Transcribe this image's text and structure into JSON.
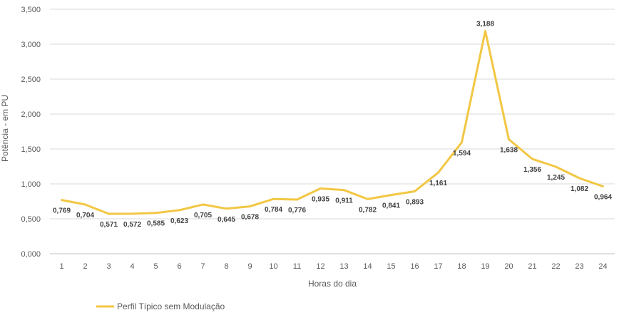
{
  "chart_data": {
    "type": "line",
    "title": "",
    "xlabel": "Horas do dia",
    "ylabel": "Potência - em PU",
    "ylim": [
      0,
      3.5
    ],
    "grid": true,
    "legend_position": "bottom-left",
    "series_color": "#F2C744",
    "grid_color": "#D9D9D9",
    "x": [
      1,
      2,
      3,
      4,
      5,
      6,
      7,
      8,
      9,
      10,
      11,
      12,
      13,
      14,
      15,
      16,
      17,
      18,
      19,
      20,
      21,
      22,
      23,
      24
    ],
    "x_tick_labels": [
      "1",
      "2",
      "3",
      "4",
      "5",
      "6",
      "7",
      "8",
      "9",
      "10",
      "11",
      "12",
      "13",
      "14",
      "15",
      "16",
      "17",
      "18",
      "19",
      "20",
      "21",
      "22",
      "23",
      "24"
    ],
    "y_ticks": [
      0,
      0.5,
      1,
      1.5,
      2,
      2.5,
      3,
      3.5
    ],
    "y_tick_labels": [
      "0,000",
      "0,500",
      "1,000",
      "1,500",
      "2,000",
      "2,500",
      "3,000",
      "3,500"
    ],
    "series": [
      {
        "name": "Perfil Típico sem Modulação",
        "values": [
          0.769,
          0.704,
          0.571,
          0.572,
          0.585,
          0.623,
          0.705,
          0.645,
          0.678,
          0.784,
          0.776,
          0.935,
          0.911,
          0.782,
          0.841,
          0.893,
          1.161,
          1.594,
          3.188,
          1.638,
          1.356,
          1.245,
          1.082,
          0.964
        ],
        "labels": [
          "0,769",
          "0,704",
          "0,571",
          "0,572",
          "0,585",
          "0,623",
          "0,705",
          "0,645",
          "0,678",
          "0,784",
          "0,776",
          "0,935",
          "0,911",
          "0,782",
          "0,841",
          "0,893",
          "1,161",
          "1,594",
          "3,188",
          "1,638",
          "1,356",
          "1,245",
          "1,082",
          "0,964"
        ]
      }
    ]
  }
}
